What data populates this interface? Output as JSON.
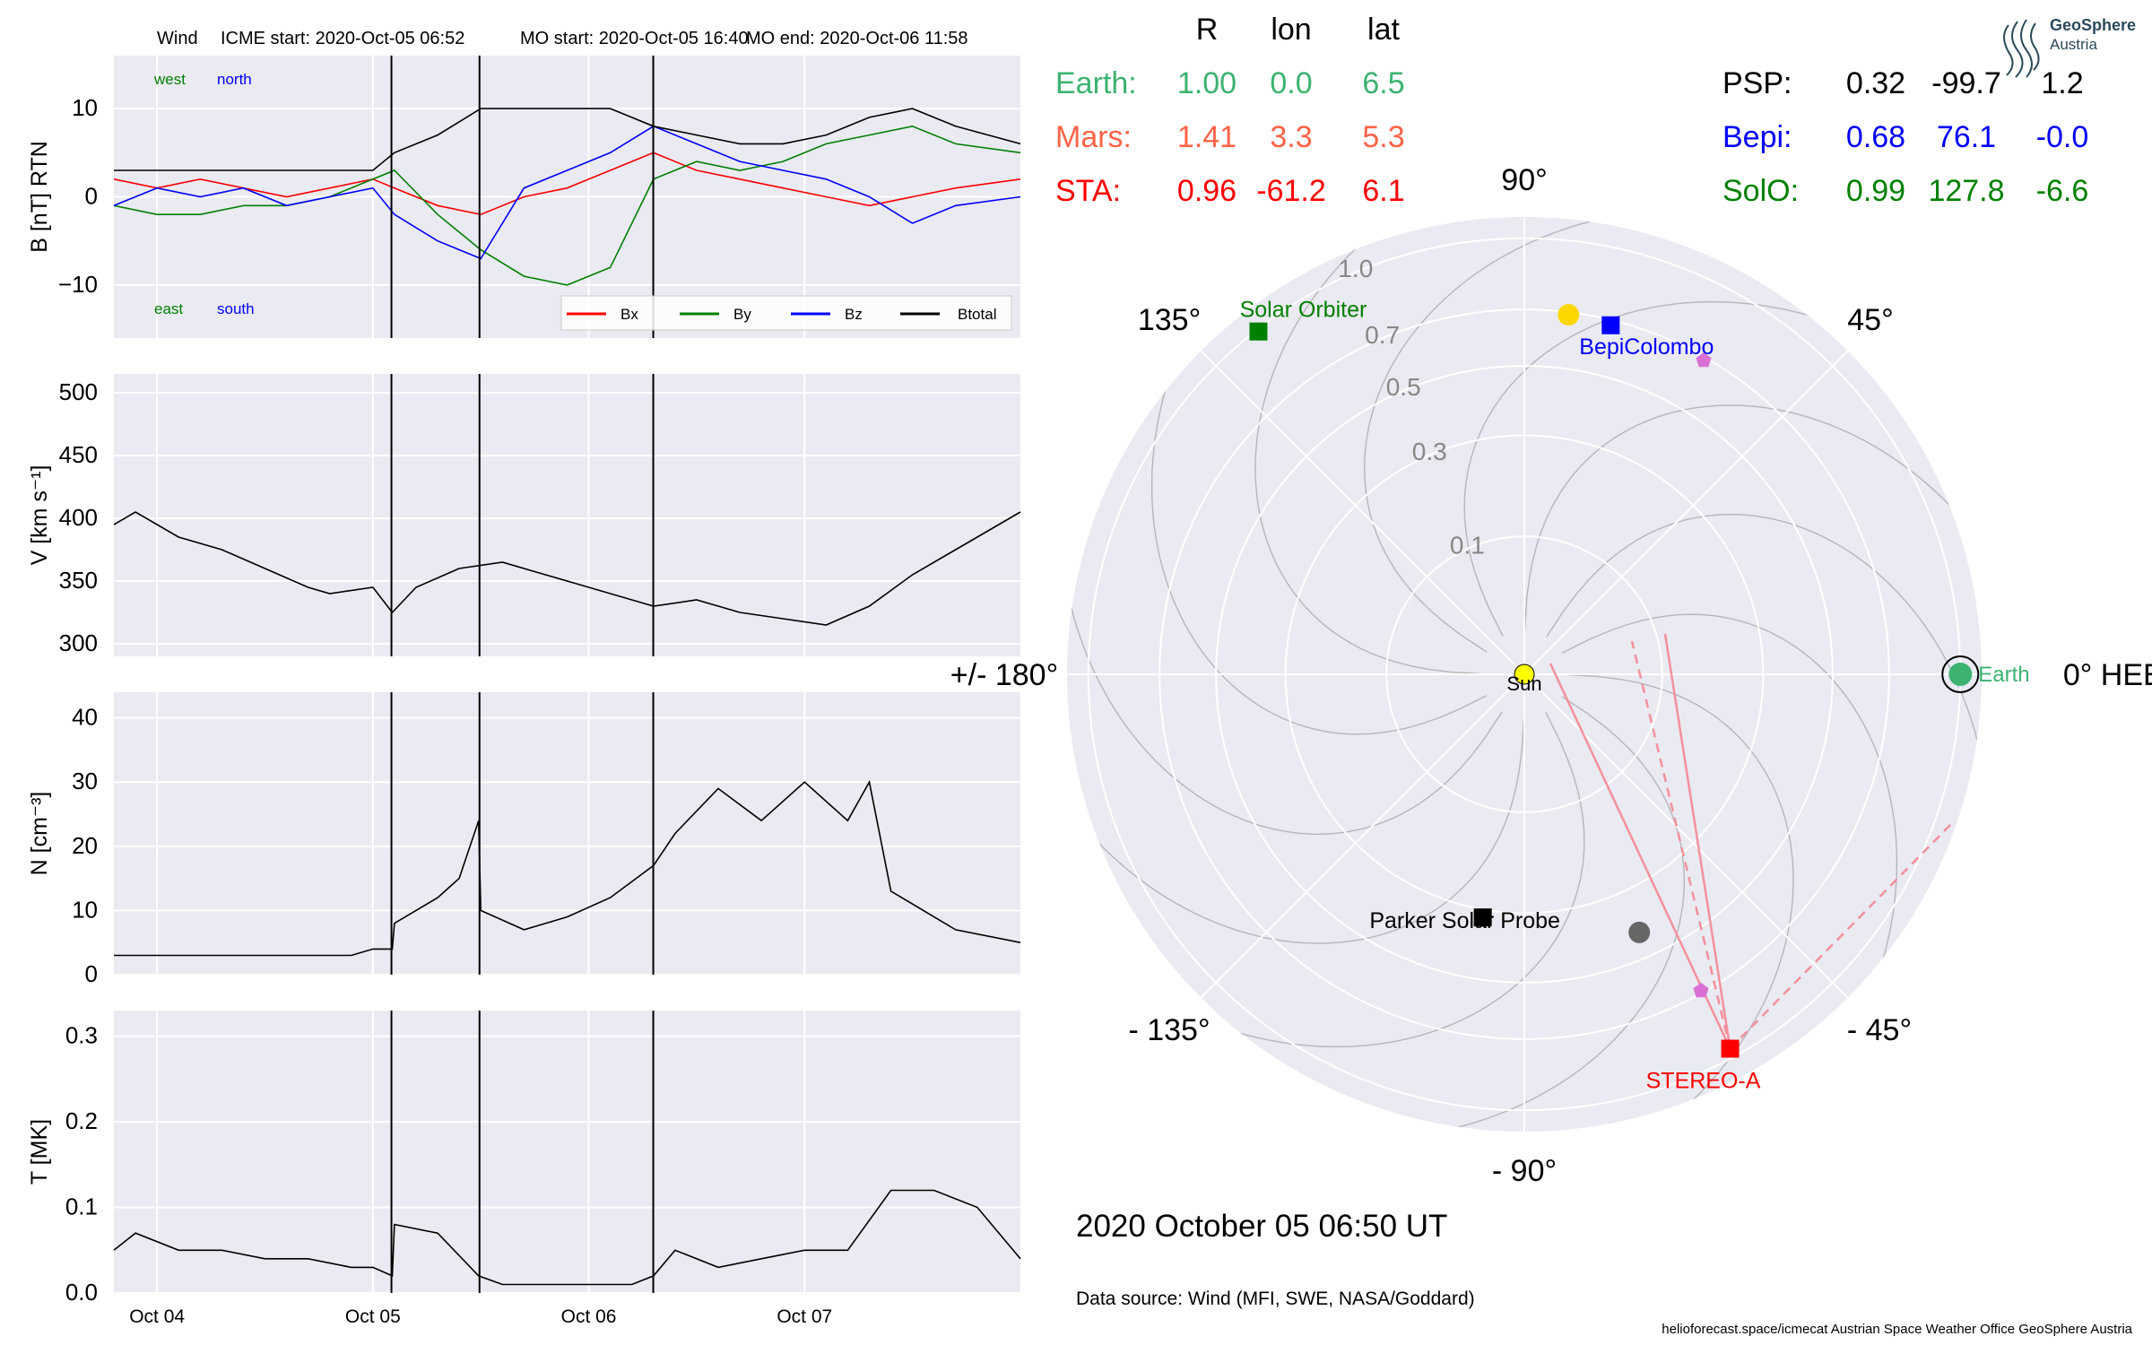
{
  "header": {
    "mission": "Wind",
    "icme_start": "ICME start: 2020-Oct-05 06:52",
    "mo_start": "MO start: 2020-Oct-05 16:40",
    "mo_end": "MO end: 2020-Oct-06 11:58"
  },
  "colors": {
    "panel_bg": "#eaeaf2",
    "bx": "#ff0000",
    "by": "#008000",
    "bz": "#0000ff",
    "btotal": "#000000",
    "earth": "#3cb371",
    "mars": "#ff6347",
    "sta": "#ff0000",
    "psp": "#000000",
    "bepi": "#0000ff",
    "solo": "#008000",
    "sun": "#ffff00",
    "pentagon": "#da70d6"
  },
  "chart_data": [
    {
      "type": "line",
      "id": "B",
      "ylabel": "B [nT] RTN",
      "ylim": [
        -16,
        16
      ],
      "yticks": [
        -10,
        0,
        10
      ],
      "xlim_days": [
        0,
        4.2
      ],
      "xticks": [
        "Oct 04",
        "Oct 05",
        "Oct 06",
        "Oct 07"
      ],
      "event_lines_days": [
        1.286,
        1.694,
        2.499
      ],
      "corner_labels": {
        "top_left": "west",
        "top_right": "north",
        "bottom_left": "east",
        "bottom_right": "south"
      },
      "legend": [
        "Bx",
        "By",
        "Bz",
        "Btotal"
      ],
      "series": [
        {
          "name": "Bx",
          "x": [
            0,
            0.2,
            0.4,
            0.6,
            0.8,
            1.0,
            1.2,
            1.3,
            1.5,
            1.7,
            1.9,
            2.1,
            2.3,
            2.5,
            2.7,
            2.9,
            3.1,
            3.3,
            3.5,
            3.7,
            3.9,
            4.2
          ],
          "values": [
            2,
            1,
            2,
            1,
            0,
            1,
            2,
            1,
            -1,
            -2,
            0,
            1,
            3,
            5,
            3,
            2,
            1,
            0,
            -1,
            0,
            1,
            2
          ]
        },
        {
          "name": "By",
          "x": [
            0,
            0.2,
            0.4,
            0.6,
            0.8,
            1.0,
            1.2,
            1.3,
            1.5,
            1.7,
            1.9,
            2.1,
            2.3,
            2.5,
            2.7,
            2.9,
            3.1,
            3.3,
            3.5,
            3.7,
            3.9,
            4.2
          ],
          "values": [
            -1,
            -2,
            -2,
            -1,
            -1,
            0,
            2,
            3,
            -2,
            -6,
            -9,
            -10,
            -8,
            2,
            4,
            3,
            4,
            6,
            7,
            8,
            6,
            5
          ]
        },
        {
          "name": "Bz",
          "x": [
            0,
            0.2,
            0.4,
            0.6,
            0.8,
            1.0,
            1.2,
            1.3,
            1.5,
            1.7,
            1.9,
            2.1,
            2.3,
            2.5,
            2.7,
            2.9,
            3.1,
            3.3,
            3.5,
            3.7,
            3.9,
            4.2
          ],
          "values": [
            -1,
            1,
            0,
            1,
            -1,
            0,
            1,
            -2,
            -5,
            -7,
            1,
            3,
            5,
            8,
            6,
            4,
            3,
            2,
            0,
            -3,
            -1,
            0
          ]
        },
        {
          "name": "Btotal",
          "x": [
            0,
            0.2,
            0.4,
            0.6,
            0.8,
            1.0,
            1.2,
            1.3,
            1.5,
            1.7,
            1.9,
            2.1,
            2.3,
            2.5,
            2.7,
            2.9,
            3.1,
            3.3,
            3.5,
            3.7,
            3.9,
            4.2
          ],
          "values": [
            3,
            3,
            3,
            3,
            3,
            3,
            3,
            5,
            7,
            10,
            10,
            10,
            10,
            8,
            7,
            6,
            6,
            7,
            9,
            10,
            8,
            6
          ]
        }
      ]
    },
    {
      "type": "line",
      "id": "V",
      "ylabel": "V [km s⁻¹]",
      "ylim": [
        290,
        515
      ],
      "yticks": [
        300,
        350,
        400,
        450,
        500
      ],
      "series": [
        {
          "name": "V",
          "x": [
            0,
            0.1,
            0.3,
            0.5,
            0.7,
            0.9,
            1.0,
            1.2,
            1.29,
            1.4,
            1.6,
            1.8,
            2.0,
            2.2,
            2.4,
            2.5,
            2.7,
            2.9,
            3.1,
            3.3,
            3.5,
            3.7,
            3.9,
            4.2
          ],
          "values": [
            395,
            405,
            385,
            375,
            360,
            345,
            340,
            345,
            325,
            345,
            360,
            365,
            355,
            345,
            335,
            330,
            335,
            325,
            320,
            315,
            330,
            355,
            375,
            405
          ]
        }
      ]
    },
    {
      "type": "line",
      "id": "N",
      "ylabel": "N [cm⁻³]",
      "ylim": [
        0,
        44
      ],
      "yticks": [
        0,
        10,
        20,
        30,
        40
      ],
      "series": [
        {
          "name": "N",
          "x": [
            0,
            0.3,
            0.6,
            0.9,
            1.1,
            1.2,
            1.29,
            1.3,
            1.5,
            1.6,
            1.69,
            1.7,
            1.9,
            2.1,
            2.3,
            2.5,
            2.6,
            2.8,
            3.0,
            3.2,
            3.4,
            3.5,
            3.6,
            3.9,
            4.2
          ],
          "values": [
            3,
            3,
            3,
            3,
            3,
            4,
            4,
            8,
            12,
            15,
            24,
            10,
            7,
            9,
            12,
            17,
            22,
            29,
            24,
            30,
            24,
            30,
            13,
            7,
            5
          ]
        }
      ]
    },
    {
      "type": "line",
      "id": "T",
      "ylabel": "T [MK]",
      "ylim": [
        0,
        0.33
      ],
      "yticks": [
        0.0,
        0.1,
        0.2,
        0.3
      ],
      "series": [
        {
          "name": "T",
          "x": [
            0,
            0.1,
            0.3,
            0.5,
            0.7,
            0.9,
            1.1,
            1.2,
            1.29,
            1.3,
            1.5,
            1.69,
            1.8,
            2.0,
            2.2,
            2.4,
            2.5,
            2.6,
            2.8,
            3.0,
            3.2,
            3.4,
            3.6,
            3.8,
            4.0,
            4.2
          ],
          "values": [
            0.05,
            0.07,
            0.05,
            0.05,
            0.04,
            0.04,
            0.03,
            0.03,
            0.02,
            0.08,
            0.07,
            0.02,
            0.01,
            0.01,
            0.01,
            0.01,
            0.02,
            0.05,
            0.03,
            0.04,
            0.05,
            0.05,
            0.12,
            0.12,
            0.1,
            0.04
          ]
        }
      ]
    },
    {
      "type": "scatter",
      "id": "polar",
      "projection": "polar",
      "r_max": 1.1,
      "r_tick_labels": [
        "0.1",
        "0.3",
        "0.5",
        "0.7",
        "1.0"
      ],
      "r_ticks": [
        0.1,
        0.3,
        0.5,
        0.7,
        1.0
      ],
      "angle_labels": [
        "0° HEEQ",
        "45°",
        "90°",
        "135°",
        "+/- 180°",
        "- 135°",
        "- 90°",
        "- 45°"
      ],
      "angles_deg": [
        0,
        45,
        90,
        135,
        180,
        -135,
        -90,
        -45
      ],
      "objects": [
        {
          "name": "Sun",
          "r": 0.0,
          "lon": 0,
          "marker": "circle",
          "color": "#ffff00"
        },
        {
          "name": "Earth",
          "r": 1.0,
          "lon": 0.0,
          "marker": "circle",
          "color": "#3cb371"
        },
        {
          "name": "Solar Orbiter",
          "r": 0.99,
          "lon": 127.8,
          "marker": "square",
          "color": "#008000"
        },
        {
          "name": "BepiColombo",
          "r": 0.68,
          "lon": 76.1,
          "marker": "square",
          "color": "#0000ff"
        },
        {
          "name": "Parker Solar Probe",
          "r": 0.32,
          "lon": -99.7,
          "marker": "square",
          "color": "#000000"
        },
        {
          "name": "STEREO-A",
          "r": 0.96,
          "lon": -61.2,
          "marker": "square",
          "color": "#ff0000"
        },
        {
          "name": "Mercury",
          "r": 0.69,
          "lon": 83,
          "marker": "circle",
          "color": "#ffd700"
        },
        {
          "name": "Mars-dot",
          "r": 0.42,
          "lon": -66,
          "marker": "circle",
          "color": "#666666"
        }
      ]
    }
  ],
  "table": {
    "headers": [
      "R",
      "lon",
      "lat"
    ],
    "rows_left": [
      {
        "name": "Earth:",
        "r": "1.00",
        "lon": "0.0",
        "lat": "6.5"
      },
      {
        "name": "Mars:",
        "r": "1.41",
        "lon": "3.3",
        "lat": "5.3"
      },
      {
        "name": "STA:",
        "r": "0.96",
        "lon": "-61.2",
        "lat": "6.1"
      }
    ],
    "rows_right": [
      {
        "name": "PSP:",
        "r": "0.32",
        "lon": "-99.7",
        "lat": "1.2"
      },
      {
        "name": "Bepi:",
        "r": "0.68",
        "lon": "76.1",
        "lat": "-0.0"
      },
      {
        "name": "SolO:",
        "r": "0.99",
        "lon": "127.8",
        "lat": "-6.6"
      }
    ]
  },
  "footer": {
    "date": "2020 October 05  06:50 UT",
    "source": "Data source: Wind (MFI, SWE, NASA/Goddard)",
    "credits": "helioforecast.space/icmecat   Austrian Space Weather Office   GeoSphere Austria"
  },
  "logo": {
    "line1": "GeoSphere",
    "line2": "Austria"
  }
}
